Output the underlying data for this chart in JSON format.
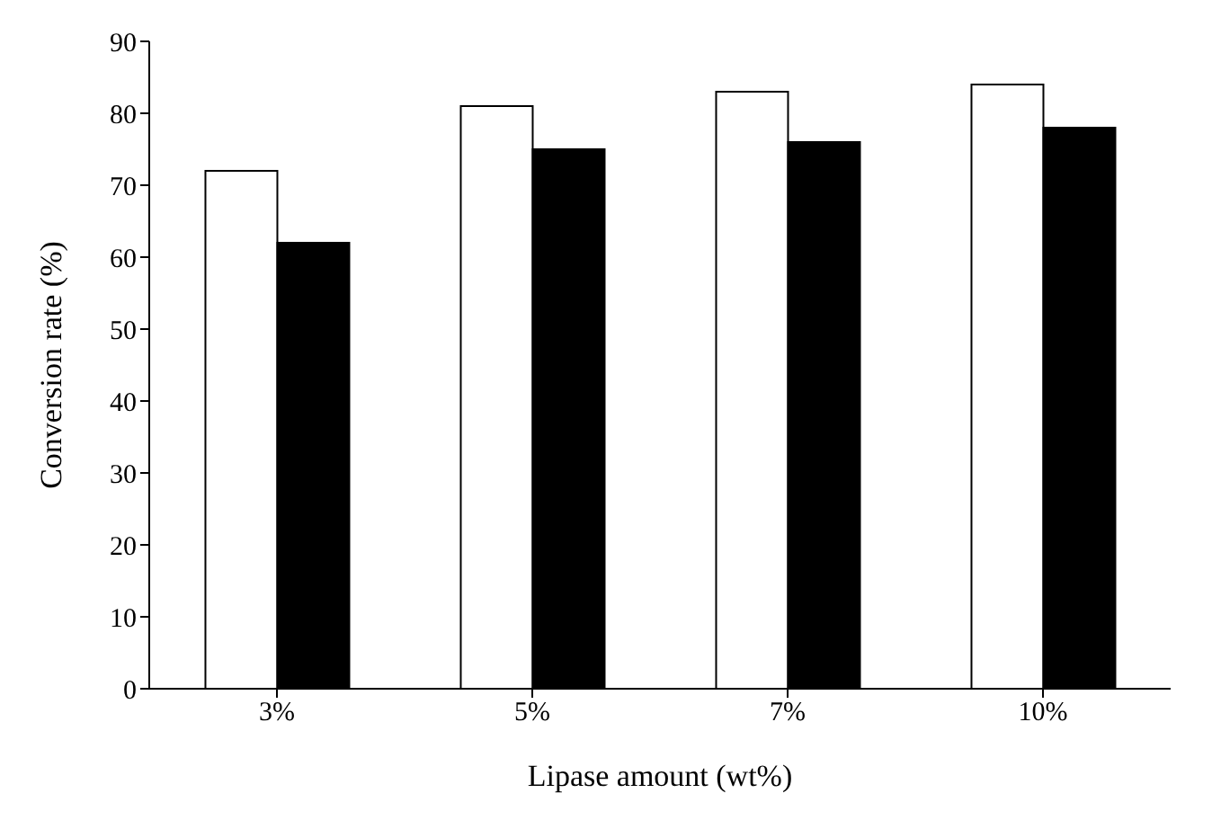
{
  "chart_data": {
    "type": "bar",
    "xlabel": "Lipase amount (wt%)",
    "ylabel": "Conversion rate (%)",
    "categories": [
      "3%",
      "5%",
      "7%",
      "10%"
    ],
    "series": [
      {
        "color": "#ffffff",
        "values": [
          72,
          81,
          83,
          84
        ]
      },
      {
        "color": "#000000",
        "values": [
          62,
          75,
          76,
          78
        ]
      }
    ],
    "ylim": [
      0,
      90
    ],
    "yticks": [
      0,
      10,
      20,
      30,
      40,
      50,
      60,
      70,
      80,
      90
    ],
    "grid": false,
    "legend": false
  }
}
